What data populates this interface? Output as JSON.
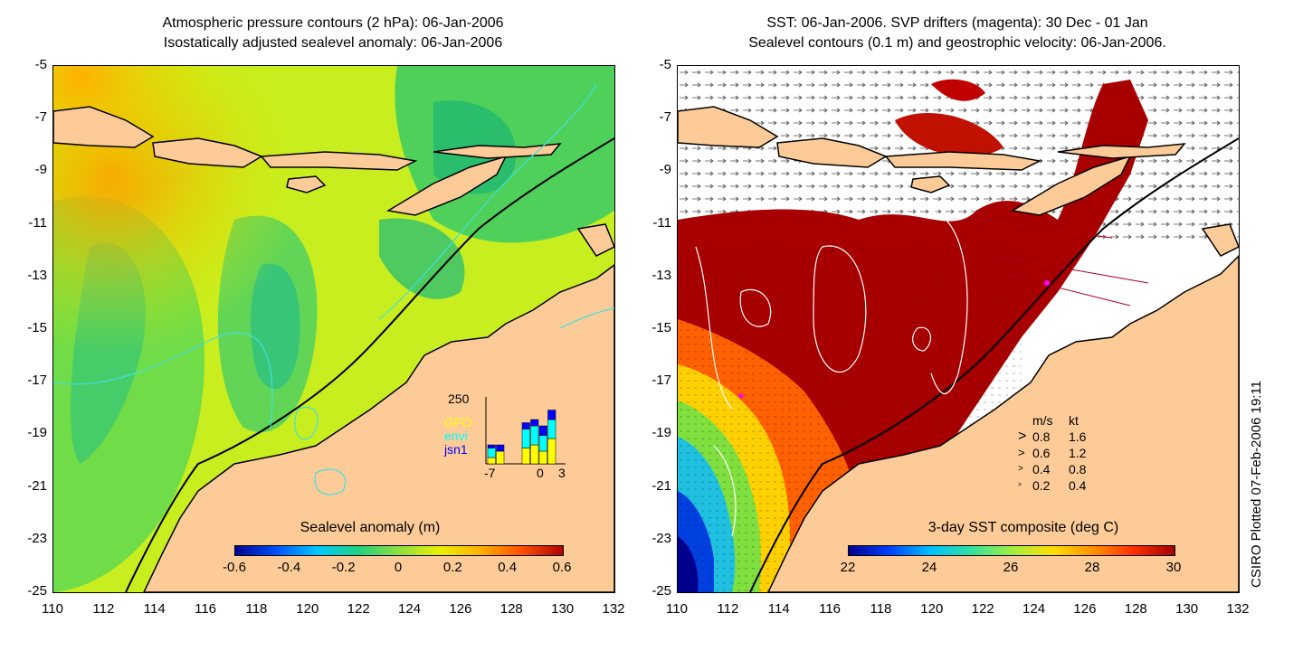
{
  "left_panel": {
    "title_line1": "Atmospheric pressure contours (2 hPa): 06-Jan-2006",
    "title_line2": "Isostatically adjusted sealevel anomaly: 06-Jan-2006",
    "colorbar_title": "Sealevel anomaly (m)",
    "colorbar_ticks": [
      "-0.6",
      "-0.4",
      "-0.2",
      "0",
      "0.2",
      "0.4",
      "0.6"
    ],
    "colormap": [
      "#00008f",
      "#0050ff",
      "#00c8ff",
      "#20d080",
      "#90e040",
      "#e8f000",
      "#ffb000",
      "#ff5000",
      "#b00000"
    ],
    "inset": {
      "ymax_label": "250",
      "x_labels": [
        "-7",
        "0",
        "3"
      ],
      "series": [
        {
          "name": "GFO",
          "color": "#ffff00"
        },
        {
          "name": "envi",
          "color": "#00ffff"
        },
        {
          "name": "jsn1",
          "color": "#0000ff"
        }
      ]
    }
  },
  "right_panel": {
    "title_line1": "SST: 06-Jan-2006. SVP drifters (magenta): 30 Dec - 01 Jan",
    "title_line2": "Sealevel contours (0.1 m) and geostrophic velocity: 06-Jan-2006.",
    "colorbar_title": "3-day SST composite (deg C)",
    "colorbar_ticks": [
      "22",
      "24",
      "26",
      "28",
      "30"
    ],
    "colormap": [
      "#00008f",
      "#0040ff",
      "#00c0ff",
      "#30e0a0",
      "#a0f040",
      "#ffe000",
      "#ff9000",
      "#ff3000",
      "#a00000"
    ],
    "velocity_legend": {
      "header_ms": "m/s",
      "header_kt": "kt",
      "rows": [
        {
          "ms": "0.8",
          "kt": "1.6"
        },
        {
          "ms": "0.6",
          "kt": "1.2"
        },
        {
          "ms": "0.4",
          "kt": "0.8"
        },
        {
          "ms": "0.2",
          "kt": "0.4"
        }
      ]
    }
  },
  "axes": {
    "y_labels": [
      "-5",
      "-7",
      "-9",
      "-11",
      "-13",
      "-15",
      "-17",
      "-19",
      "-21",
      "-23",
      "-25"
    ],
    "x_labels": [
      "110",
      "112",
      "114",
      "116",
      "118",
      "120",
      "122",
      "124",
      "126",
      "128",
      "130",
      "132"
    ]
  },
  "credit": "CSIRO Plotted 07-Feb-2006 19:11",
  "colors": {
    "land": "#fdcb98",
    "coast": "#000000",
    "contour_cyan": "#40e0e0",
    "drifter": "#ff00ff"
  }
}
